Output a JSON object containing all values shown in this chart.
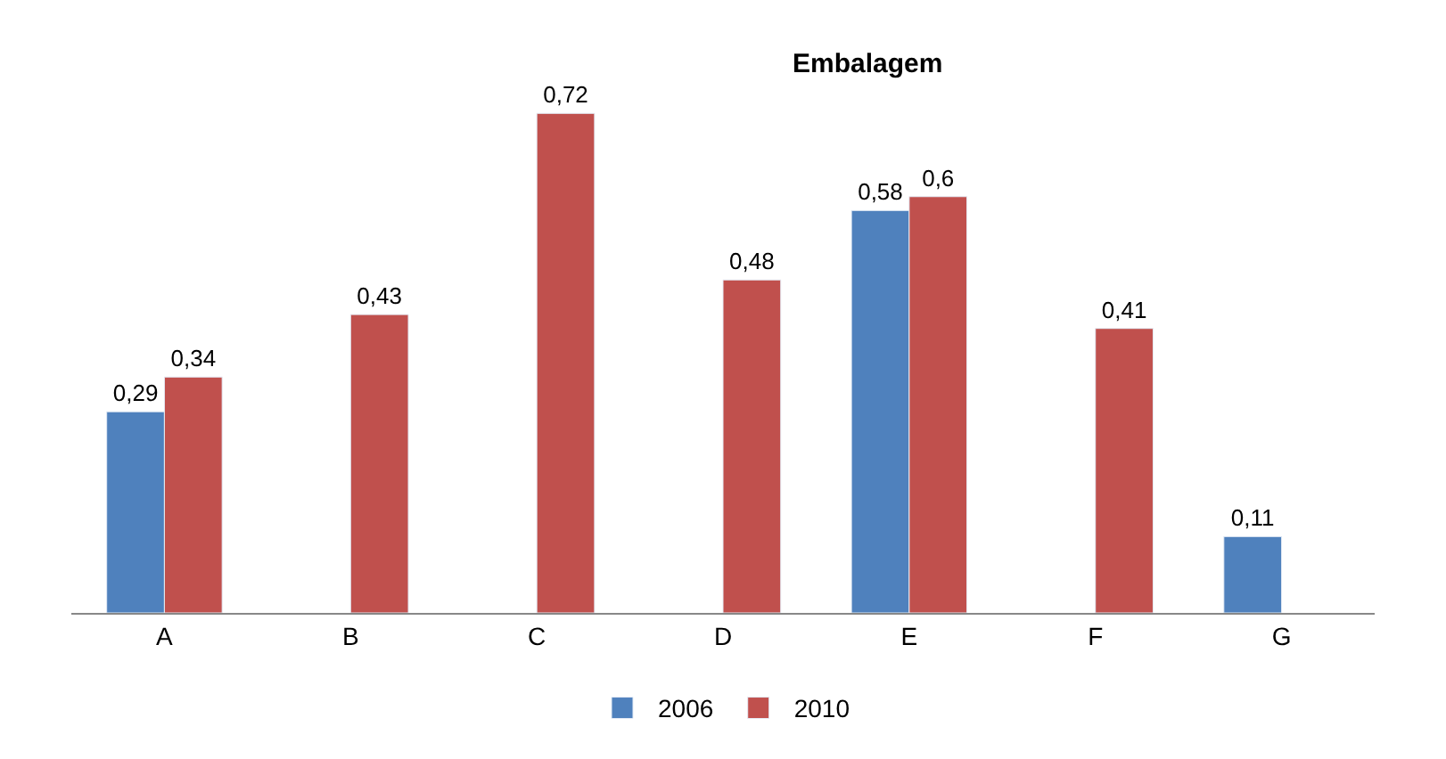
{
  "chart_data": {
    "type": "bar",
    "title": "Embalagem",
    "categories": [
      "A",
      "B",
      "C",
      "D",
      "E",
      "F",
      "G"
    ],
    "series": [
      {
        "name": "2006",
        "color": "#4f81bd",
        "values": [
          0.29,
          null,
          null,
          null,
          0.58,
          null,
          0.11
        ],
        "value_labels": [
          "0,29",
          null,
          null,
          null,
          "0,58",
          null,
          "0,11"
        ]
      },
      {
        "name": "2010",
        "color": "#c0504d",
        "values": [
          0.34,
          0.43,
          0.72,
          0.48,
          0.6,
          0.41,
          null
        ],
        "value_labels": [
          "0,34",
          "0,43",
          "0,72",
          "0,48",
          "0,6",
          "0,41",
          null
        ]
      }
    ],
    "legend": "bottom"
  }
}
